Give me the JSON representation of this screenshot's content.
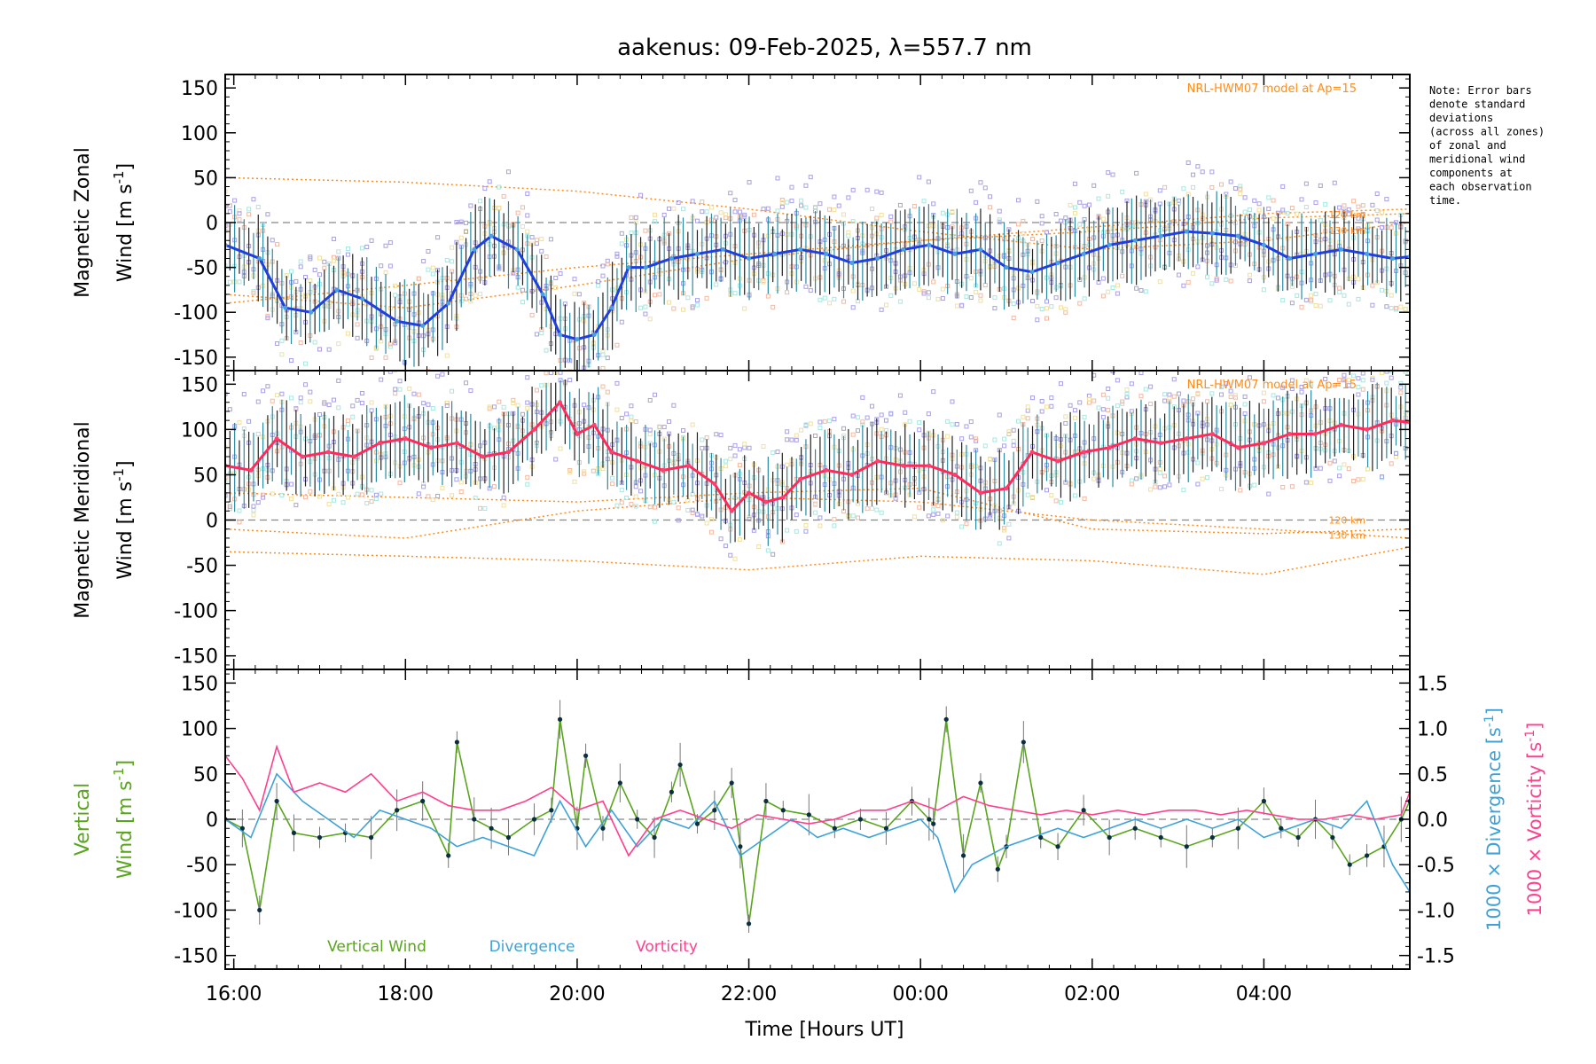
{
  "chart_data": {
    "type": "line",
    "title": "aakenus: 09-Feb-2025, λ=557.7 nm",
    "xlabel": "Time [Hours UT]",
    "x_ticks": [
      "16:00",
      "18:00",
      "20:00",
      "22:00",
      "00:00",
      "02:00",
      "04:00"
    ],
    "x_tick_hours": [
      16,
      18,
      20,
      22,
      24,
      26,
      28
    ],
    "xlim_hours": [
      15.9,
      29.7
    ],
    "note_lines": [
      "Note: Error bars",
      "denote standard",
      "deviations",
      "(across all zones)",
      "of zonal and",
      "meridional wind",
      "components at",
      "each observation",
      "time."
    ],
    "colors": {
      "zonal": "#1f3fe0",
      "meridional": "#ff2a5a",
      "model": "#ff8c1a",
      "vertical": "#5aa51e",
      "divergence": "#3ea2d8",
      "vorticity": "#ff3f8e",
      "zones": [
        "#a8a0e8",
        "#a8e8e0",
        "#f4b8a0",
        "#f0e0a0"
      ]
    },
    "panels": [
      {
        "name": "zonal",
        "ylabel_line1": "Magnetic Zonal",
        "ylabel_line2": "Wind [m s",
        "ylabel_sup": "-1",
        "ylabel_end": "]",
        "ylim": [
          -165,
          165
        ],
        "y_ticks": [
          -150,
          -100,
          -50,
          0,
          50,
          100,
          150
        ],
        "model_label": "NRL-HWM07 model at Ap=15",
        "model_alt_labels": [
          "120 km",
          "130 km"
        ],
        "series": [
          {
            "name": "Magnetic Zonal Wind",
            "x": [
              15.9,
              16.3,
              16.6,
              16.9,
              17.2,
              17.5,
              17.9,
              18.2,
              18.5,
              18.8,
              19.0,
              19.3,
              19.6,
              19.8,
              20.0,
              20.2,
              20.4,
              20.6,
              20.8,
              21.1,
              21.4,
              21.7,
              22.0,
              22.3,
              22.6,
              22.9,
              23.2,
              23.5,
              23.8,
              24.1,
              24.4,
              24.7,
              25.0,
              25.3,
              25.6,
              25.9,
              26.2,
              26.5,
              26.8,
              27.1,
              27.4,
              27.7,
              28.0,
              28.3,
              28.6,
              28.9,
              29.2,
              29.5,
              29.7
            ],
            "y": [
              -25,
              -40,
              -95,
              -100,
              -75,
              -85,
              -110,
              -115,
              -90,
              -30,
              -15,
              -30,
              -80,
              -125,
              -130,
              -125,
              -95,
              -50,
              -50,
              -40,
              -35,
              -30,
              -40,
              -35,
              -30,
              -35,
              -45,
              -40,
              -30,
              -25,
              -35,
              -30,
              -50,
              -55,
              -45,
              -35,
              -25,
              -20,
              -15,
              -10,
              -12,
              -15,
              -25,
              -40,
              -35,
              -30,
              -35,
              -40,
              -38
            ]
          }
        ],
        "model_curves": [
          {
            "name": "model-1",
            "x": [
              15.9,
              18,
              20,
              22,
              24,
              26,
              28,
              29.7
            ],
            "y": [
              50,
              45,
              35,
              15,
              -10,
              -30,
              -20,
              0
            ]
          },
          {
            "name": "model-2",
            "x": [
              15.9,
              18,
              20,
              22,
              24,
              26,
              28,
              29.7
            ],
            "y": [
              -80,
              -95,
              -70,
              -40,
              -20,
              -10,
              5,
              10
            ]
          },
          {
            "name": "model-3",
            "x": [
              15.9,
              18,
              20,
              22,
              24,
              26,
              28,
              29.7
            ],
            "y": [
              -90,
              -70,
              -50,
              -35,
              -20,
              -5,
              10,
              15
            ]
          }
        ]
      },
      {
        "name": "meridional",
        "ylabel_line1": "Magnetic Meridional",
        "ylabel_line2": "Wind [m s",
        "ylabel_sup": "-1",
        "ylabel_end": "]",
        "ylim": [
          -165,
          165
        ],
        "y_ticks": [
          -150,
          -100,
          -50,
          0,
          50,
          100,
          150
        ],
        "model_label": "NRL-HWM07 model at Ap=15",
        "model_alt_labels": [
          "120 km",
          "130 km"
        ],
        "series": [
          {
            "name": "Magnetic Meridional Wind",
            "x": [
              15.9,
              16.2,
              16.5,
              16.8,
              17.1,
              17.4,
              17.7,
              18.0,
              18.3,
              18.6,
              18.9,
              19.2,
              19.5,
              19.8,
              20.0,
              20.2,
              20.4,
              20.7,
              21.0,
              21.3,
              21.6,
              21.8,
              22.0,
              22.2,
              22.4,
              22.6,
              22.9,
              23.2,
              23.5,
              23.8,
              24.1,
              24.4,
              24.7,
              25.0,
              25.3,
              25.6,
              25.9,
              26.2,
              26.5,
              26.8,
              27.1,
              27.4,
              27.7,
              28.0,
              28.3,
              28.6,
              28.9,
              29.2,
              29.5,
              29.7
            ],
            "y": [
              60,
              55,
              90,
              70,
              75,
              70,
              85,
              90,
              80,
              85,
              70,
              75,
              100,
              130,
              95,
              105,
              75,
              65,
              55,
              60,
              40,
              10,
              30,
              20,
              25,
              45,
              55,
              50,
              65,
              60,
              60,
              50,
              30,
              35,
              75,
              65,
              75,
              80,
              90,
              85,
              90,
              95,
              80,
              85,
              95,
              95,
              105,
              100,
              110,
              108
            ]
          }
        ],
        "model_curves": [
          {
            "name": "model-1",
            "x": [
              15.9,
              18,
              20,
              22,
              24,
              26,
              28,
              29.7
            ],
            "y": [
              -10,
              -20,
              10,
              25,
              20,
              0,
              -10,
              -20
            ]
          },
          {
            "name": "model-2",
            "x": [
              15.9,
              18,
              20,
              22,
              24,
              26,
              28,
              29.7
            ],
            "y": [
              -35,
              -40,
              -45,
              -55,
              -40,
              -45,
              -60,
              -30
            ]
          },
          {
            "name": "model-3",
            "x": [
              15.9,
              18,
              20,
              22,
              24,
              26,
              28,
              29.7
            ],
            "y": [
              30,
              25,
              20,
              30,
              35,
              -10,
              -15,
              -10
            ]
          }
        ]
      },
      {
        "name": "vertical",
        "ylabel_line1": "Vertical",
        "ylabel_line2": "Wind [m s",
        "ylabel_sup": "-1",
        "ylabel_end": "]",
        "ylim": [
          -165,
          165
        ],
        "y_ticks": [
          -150,
          -100,
          -50,
          0,
          50,
          100,
          150
        ],
        "y2lim": [
          -1.65,
          1.65
        ],
        "y2_ticks": [
          -1.5,
          -1.0,
          -0.5,
          0.0,
          0.5,
          1.0,
          1.5
        ],
        "y2_tick_labels": [
          "-1.5",
          "-1.0",
          "-0.5",
          "0.0",
          "0.5",
          "1.0",
          "1.5"
        ],
        "y2_label_divergence": "1000 × Divergence [s",
        "y2_label_vorticity": "1000 × Vorticity [s",
        "y2_sup": "-1",
        "y2_end": "]",
        "legend": [
          "Vertical Wind",
          "Divergence",
          "Vorticity"
        ],
        "series": [
          {
            "name": "Vertical Wind",
            "axis": "left",
            "x": [
              15.9,
              16.1,
              16.3,
              16.5,
              16.7,
              17.0,
              17.3,
              17.6,
              17.9,
              18.2,
              18.5,
              18.6,
              18.8,
              19.0,
              19.2,
              19.5,
              19.7,
              19.8,
              20.0,
              20.1,
              20.3,
              20.5,
              20.7,
              20.9,
              21.1,
              21.2,
              21.4,
              21.6,
              21.8,
              21.9,
              22.0,
              22.2,
              22.4,
              22.7,
              23.0,
              23.3,
              23.6,
              23.9,
              24.1,
              24.15,
              24.3,
              24.5,
              24.7,
              24.9,
              25.0,
              25.2,
              25.4,
              25.6,
              25.9,
              26.2,
              26.5,
              26.8,
              27.1,
              27.4,
              27.7,
              28.0,
              28.2,
              28.4,
              28.6,
              28.8,
              29.0,
              29.2,
              29.4,
              29.6,
              29.7
            ],
            "y": [
              0,
              -10,
              -100,
              20,
              -15,
              -20,
              -15,
              -20,
              10,
              20,
              -40,
              85,
              0,
              -10,
              -20,
              0,
              10,
              110,
              -10,
              70,
              -10,
              40,
              0,
              -20,
              30,
              60,
              -5,
              10,
              40,
              -30,
              -115,
              20,
              10,
              5,
              -10,
              0,
              -10,
              20,
              0,
              -5,
              110,
              -40,
              40,
              -55,
              -30,
              85,
              -20,
              -30,
              10,
              -20,
              -10,
              -20,
              -30,
              -20,
              -10,
              20,
              -10,
              -20,
              0,
              -20,
              -50,
              -40,
              -30,
              0,
              20
            ]
          },
          {
            "name": "Divergence",
            "axis": "right",
            "x": [
              15.9,
              16.2,
              16.5,
              16.8,
              17.1,
              17.4,
              17.7,
              18.0,
              18.3,
              18.6,
              18.9,
              19.2,
              19.5,
              19.8,
              20.1,
              20.4,
              20.7,
              21.0,
              21.3,
              21.6,
              21.9,
              22.2,
              22.5,
              22.8,
              23.1,
              23.4,
              23.7,
              24.0,
              24.2,
              24.4,
              24.6,
              24.8,
              25.0,
              25.3,
              25.6,
              25.9,
              26.2,
              26.5,
              26.8,
              27.1,
              27.4,
              27.7,
              28.0,
              28.3,
              28.6,
              28.9,
              29.2,
              29.5,
              29.7
            ],
            "y": [
              0.0,
              -0.2,
              0.5,
              0.2,
              0.0,
              -0.2,
              0.1,
              0.0,
              -0.1,
              -0.3,
              -0.2,
              -0.3,
              -0.4,
              0.2,
              -0.3,
              0.1,
              -0.3,
              0.0,
              -0.1,
              0.2,
              -0.4,
              -0.2,
              0.0,
              -0.2,
              -0.1,
              -0.2,
              -0.1,
              0.0,
              -0.2,
              -0.8,
              -0.5,
              -0.4,
              -0.3,
              -0.2,
              -0.1,
              -0.2,
              -0.1,
              0.0,
              -0.1,
              0.0,
              -0.1,
              0.0,
              -0.2,
              -0.1,
              0.0,
              -0.1,
              0.2,
              -0.5,
              -0.8
            ]
          },
          {
            "name": "Vorticity",
            "axis": "right",
            "x": [
              15.9,
              16.1,
              16.3,
              16.5,
              16.7,
              17.0,
              17.3,
              17.6,
              17.9,
              18.2,
              18.5,
              18.8,
              19.1,
              19.4,
              19.7,
              20.0,
              20.3,
              20.6,
              20.9,
              21.2,
              21.5,
              21.8,
              22.1,
              22.4,
              22.7,
              23.0,
              23.3,
              23.6,
              23.9,
              24.2,
              24.5,
              24.8,
              25.1,
              25.4,
              25.7,
              26.0,
              26.3,
              26.6,
              26.9,
              27.2,
              27.5,
              27.8,
              28.1,
              28.4,
              28.7,
              29.0,
              29.3,
              29.6,
              29.7
            ],
            "y": [
              0.7,
              0.45,
              0.1,
              0.8,
              0.3,
              0.4,
              0.3,
              0.5,
              0.2,
              0.3,
              0.15,
              0.1,
              0.1,
              0.2,
              0.35,
              0.1,
              0.2,
              -0.4,
              0.0,
              0.1,
              0.0,
              -0.1,
              0.05,
              0.0,
              -0.05,
              0.0,
              0.1,
              0.1,
              0.2,
              0.1,
              0.25,
              0.15,
              0.1,
              0.05,
              0.1,
              0.05,
              0.1,
              0.05,
              0.1,
              0.1,
              0.05,
              0.1,
              0.05,
              0.0,
              0.0,
              0.05,
              0.0,
              0.05,
              0.3
            ]
          }
        ]
      }
    ]
  }
}
